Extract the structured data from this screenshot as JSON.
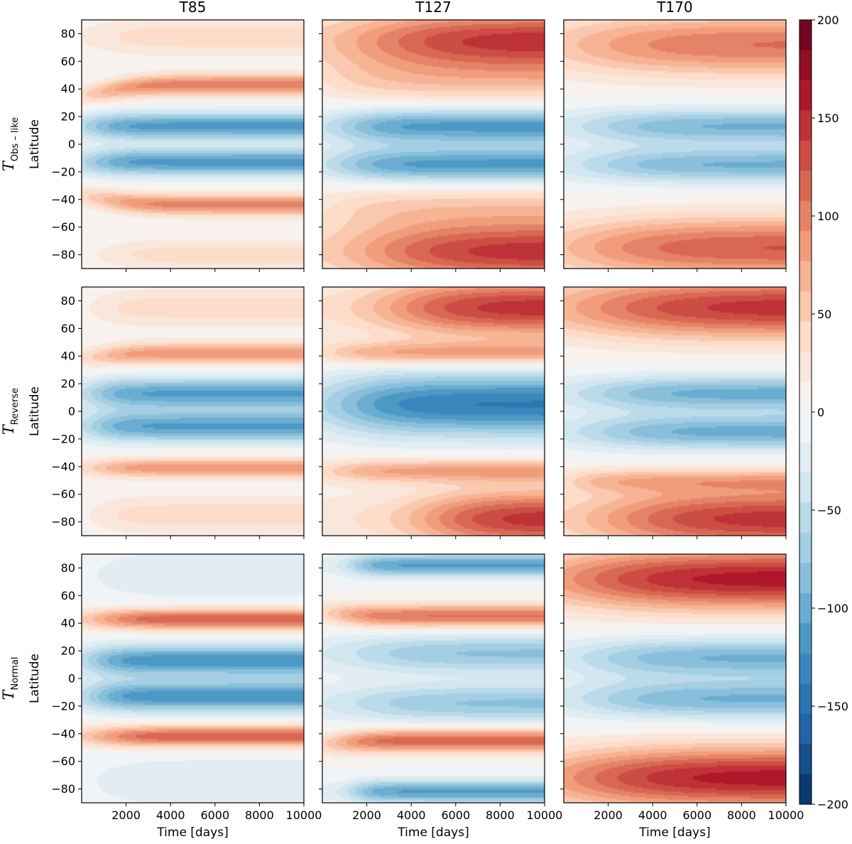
{
  "chart_data": {
    "type": "heatmap",
    "title": "",
    "column_titles": [
      "T85",
      "T127",
      "T170"
    ],
    "row_labels": [
      {
        "symbol": "T",
        "subscript": "Obs – like"
      },
      {
        "symbol": "T",
        "subscript": "Reverse"
      },
      {
        "symbol": "T",
        "subscript": "Normal"
      }
    ],
    "xlabel": "Time [days]",
    "ylabel": "Latitude",
    "xlim": [
      0,
      10000
    ],
    "ylim": [
      -90,
      90
    ],
    "xticks": [
      2000,
      4000,
      6000,
      8000,
      10000
    ],
    "yticks": [
      80,
      60,
      40,
      20,
      0,
      -20,
      -40,
      -60,
      -80
    ],
    "colorbar": {
      "cmap": "RdBu_r",
      "vmin": -200,
      "vmax": 200,
      "ticks": [
        200,
        150,
        100,
        50,
        0,
        -50,
        -100,
        -150,
        -200
      ],
      "tick_labels": [
        "200",
        "150",
        "100",
        "50",
        "0",
        "−50",
        "−100",
        "−150",
        "−200"
      ]
    },
    "panels": [
      {
        "row": 0,
        "col": 0,
        "bands": [
          {
            "lat": 78,
            "width": 10,
            "amp": 40,
            "t_start": 800,
            "t_end": 3500
          },
          {
            "lat": 43,
            "width": 5.5,
            "amp": 105,
            "t_start": 800,
            "t_end": 3500,
            "lat_start": 32
          },
          {
            "lat": 13,
            "width": 7,
            "amp": -115,
            "t_start": 300,
            "t_end": 2500
          },
          {
            "lat": -13,
            "width": 7,
            "amp": -115,
            "t_start": 300,
            "t_end": 2500
          },
          {
            "lat": -44,
            "width": 5.5,
            "amp": 100,
            "t_start": 800,
            "t_end": 3500,
            "lat_start": -35
          },
          {
            "lat": -80,
            "width": 8,
            "amp": 40,
            "t_start": 1500,
            "t_end": 4000
          }
        ]
      },
      {
        "row": 0,
        "col": 1,
        "bands": [
          {
            "lat": 75,
            "width": 16,
            "amp": 150,
            "t_start": 2200,
            "t_end": 8000
          },
          {
            "lat": 45,
            "width": 12,
            "amp": 45,
            "t_start": 500,
            "t_end": 3500
          },
          {
            "lat": 13,
            "width": 9,
            "amp": -115,
            "t_start": 1000,
            "t_end": 4000
          },
          {
            "lat": -15,
            "width": 9,
            "amp": -115,
            "t_start": 1000,
            "t_end": 4000
          },
          {
            "lat": -78,
            "width": 16,
            "amp": 150,
            "t_start": 2500,
            "t_end": 8000
          },
          {
            "lat": -45,
            "width": 12,
            "amp": 45,
            "t_start": 500,
            "t_end": 3500
          }
        ]
      },
      {
        "row": 0,
        "col": 2,
        "bands": [
          {
            "lat": 72,
            "width": 16,
            "amp": 110,
            "t_start": 800,
            "t_end": 7000
          },
          {
            "lat": 13,
            "width": 9,
            "amp": -95,
            "t_start": 1500,
            "t_end": 6000
          },
          {
            "lat": -15,
            "width": 9,
            "amp": -95,
            "t_start": 1500,
            "t_end": 6000
          },
          {
            "lat": -75,
            "width": 16,
            "amp": 125,
            "t_start": 1000,
            "t_end": 7000
          }
        ]
      },
      {
        "row": 1,
        "col": 0,
        "bands": [
          {
            "lat": 75,
            "width": 10,
            "amp": 40,
            "t_start": 1000,
            "t_end": 3000
          },
          {
            "lat": 42,
            "width": 5.5,
            "amp": 90,
            "t_start": 700,
            "t_end": 3000,
            "lat_start": 37
          },
          {
            "lat": 13,
            "width": 8,
            "amp": -110,
            "t_start": 500,
            "t_end": 2500
          },
          {
            "lat": -11,
            "width": 8,
            "amp": -110,
            "t_start": 500,
            "t_end": 2500
          },
          {
            "lat": -41,
            "width": 5,
            "amp": 90,
            "t_start": 700,
            "t_end": 3000
          },
          {
            "lat": -75,
            "width": 10,
            "amp": 40,
            "t_start": 1000,
            "t_end": 3000
          }
        ]
      },
      {
        "row": 1,
        "col": 1,
        "bands": [
          {
            "lat": 75,
            "width": 15,
            "amp": 150,
            "t_start": 3500,
            "t_end": 8000
          },
          {
            "lat": 42,
            "width": 6,
            "amp": 80,
            "t_start": 500,
            "t_end": 3000
          },
          {
            "lat": 5,
            "width": 16,
            "amp": -140,
            "t_start": 1000,
            "t_end": 5000
          },
          {
            "lat": -43,
            "width": 6,
            "amp": 80,
            "t_start": 500,
            "t_end": 3000
          },
          {
            "lat": -78,
            "width": 15,
            "amp": 150,
            "t_start": 5000,
            "t_end": 9000
          }
        ]
      },
      {
        "row": 1,
        "col": 2,
        "bands": [
          {
            "lat": 75,
            "width": 16,
            "amp": 150,
            "t_start": 1200,
            "t_end": 8000
          },
          {
            "lat": 13,
            "width": 9,
            "amp": -100,
            "t_start": 1500,
            "t_end": 6000
          },
          {
            "lat": -15,
            "width": 9,
            "amp": -100,
            "t_start": 1500,
            "t_end": 6000
          },
          {
            "lat": -78,
            "width": 16,
            "amp": 150,
            "t_start": 2500,
            "t_end": 8000
          },
          {
            "lat": -50,
            "width": 6,
            "amp": 60,
            "t_start": 500,
            "t_end": 2500
          }
        ]
      },
      {
        "row": 2,
        "col": 0,
        "bands": [
          {
            "lat": 75,
            "width": 14,
            "amp": -30,
            "t_start": 1000,
            "t_end": 4000
          },
          {
            "lat": 43,
            "width": 5.5,
            "amp": 125,
            "t_start": 800,
            "t_end": 3500
          },
          {
            "lat": 13,
            "width": 8,
            "amp": -120,
            "t_start": 500,
            "t_end": 2500
          },
          {
            "lat": -13,
            "width": 8,
            "amp": -120,
            "t_start": 500,
            "t_end": 2500
          },
          {
            "lat": -42,
            "width": 5.5,
            "amp": 125,
            "t_start": 800,
            "t_end": 3500
          },
          {
            "lat": -75,
            "width": 14,
            "amp": -30,
            "t_start": 1000,
            "t_end": 4000
          }
        ]
      },
      {
        "row": 2,
        "col": 1,
        "bands": [
          {
            "lat": 82,
            "width": 6,
            "amp": -110,
            "t_start": 1500,
            "t_end": 3000
          },
          {
            "lat": 45,
            "width": 6,
            "amp": 110,
            "t_start": 800,
            "t_end": 3000,
            "lat_start": 48
          },
          {
            "lat": 18,
            "width": 10,
            "amp": -80,
            "t_start": 1500,
            "t_end": 6000
          },
          {
            "lat": -18,
            "width": 10,
            "amp": -80,
            "t_start": 1500,
            "t_end": 6000
          },
          {
            "lat": -45,
            "width": 6,
            "amp": 120,
            "t_start": 800,
            "t_end": 3000,
            "lat_start": -48
          },
          {
            "lat": -82,
            "width": 6,
            "amp": -110,
            "t_start": 1500,
            "t_end": 3000
          }
        ]
      },
      {
        "row": 2,
        "col": 2,
        "bands": [
          {
            "lat": 72,
            "width": 16,
            "amp": 165,
            "t_start": 600,
            "t_end": 7000
          },
          {
            "lat": 15,
            "width": 10,
            "amp": -95,
            "t_start": 1500,
            "t_end": 6000
          },
          {
            "lat": -15,
            "width": 10,
            "amp": -95,
            "t_start": 1500,
            "t_end": 6000
          },
          {
            "lat": -72,
            "width": 16,
            "amp": 165,
            "t_start": 600,
            "t_end": 7000
          }
        ]
      }
    ]
  }
}
